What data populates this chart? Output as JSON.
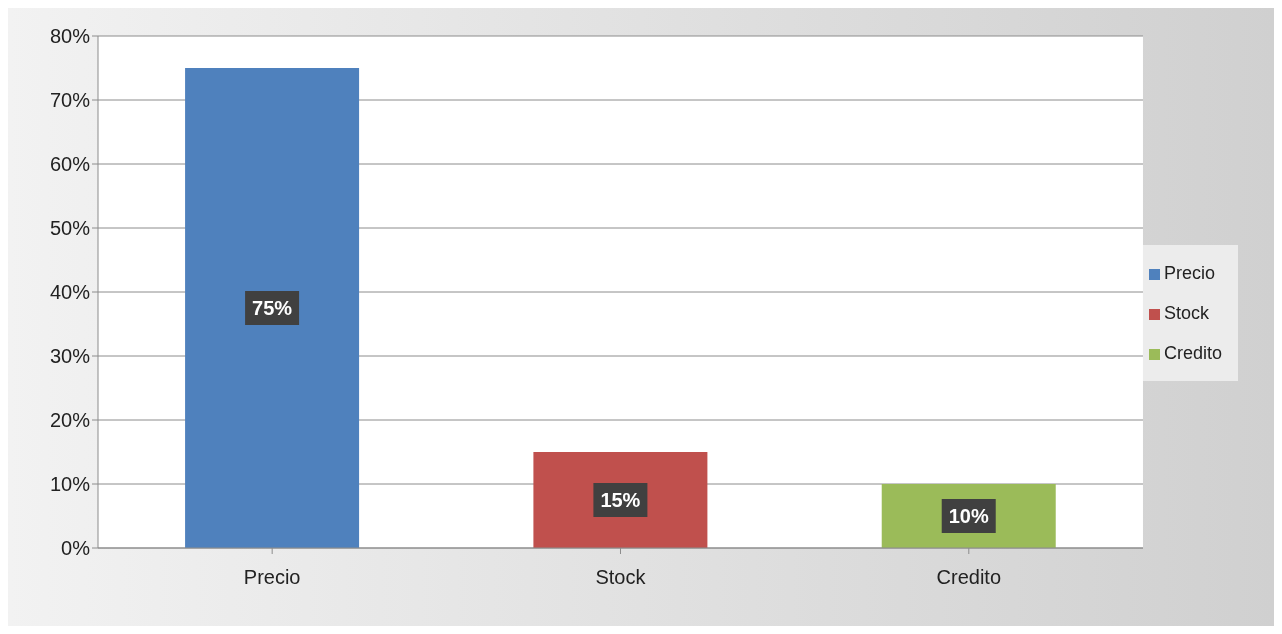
{
  "chart_data": {
    "type": "bar",
    "categories": [
      "Precio",
      "Stock",
      "Credito"
    ],
    "stacked": true,
    "series": [
      {
        "name": "Precio",
        "color": "#4f81bd",
        "values": [
          75,
          null,
          null
        ],
        "value_labels": [
          "75%",
          null,
          null
        ]
      },
      {
        "name": "Stock",
        "color": "#c0504d",
        "values": [
          null,
          15,
          null
        ],
        "value_labels": [
          null,
          "15%",
          null
        ]
      },
      {
        "name": "Credito",
        "color": "#9bbb59",
        "values": [
          null,
          null,
          10
        ],
        "value_labels": [
          null,
          null,
          "10%"
        ]
      }
    ],
    "ylim": [
      0,
      80
    ],
    "yticks": [
      {
        "value": 0,
        "label": "0%"
      },
      {
        "value": 10,
        "label": "10%"
      },
      {
        "value": 20,
        "label": "20%"
      },
      {
        "value": 30,
        "label": "30%"
      },
      {
        "value": 40,
        "label": "40%"
      },
      {
        "value": 50,
        "label": "50%"
      },
      {
        "value": 60,
        "label": "60%"
      },
      {
        "value": 70,
        "label": "70%"
      },
      {
        "value": 80,
        "label": "80%"
      }
    ],
    "grid": "y",
    "legend": "right"
  }
}
